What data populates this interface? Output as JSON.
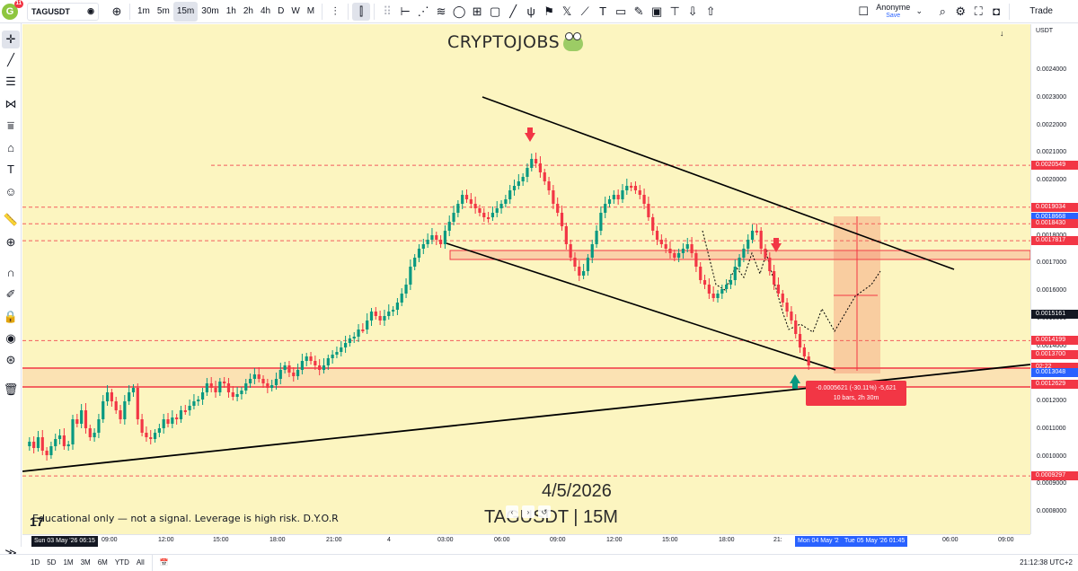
{
  "topbar": {
    "logo_badge": "11",
    "symbol": "TAGUSDT",
    "intervals": [
      "1m",
      "5m",
      "15m",
      "30m",
      "1h",
      "2h",
      "4h",
      "D",
      "W",
      "M"
    ],
    "active_interval": "15m",
    "user_name": "Anonyme",
    "save_label": "Save",
    "trade_label": "Trade"
  },
  "chart": {
    "title": "CRYPTOJOBS",
    "watermark_date": "4/5/2026",
    "watermark_symbol": "TAGUSDT | 15M",
    "disclaimer": "Educational only — not a signal. Leverage is high risk. D.Y.O.R",
    "measure_line1": "-0.0005621 (-30.11%) -5,621",
    "measure_line2": "10 bars, 2h 30m"
  },
  "price_axis": {
    "currency": "USDT",
    "ticks": [
      "0.0024000",
      "0.0023000",
      "0.0022000",
      "0.0021000",
      "0.0020000",
      "0.0019000",
      "0.0018000",
      "0.0017000",
      "0.0016000",
      "0.0015000",
      "0.0014000",
      "0.0013000",
      "0.0012000",
      "0.0011000",
      "0.0010000",
      "0.0009000",
      "0.0008000"
    ],
    "labels": [
      {
        "text": "0.0020549",
        "color": "#f23645"
      },
      {
        "text": "0.0019034",
        "color": "#f23645"
      },
      {
        "text": "0.0018668",
        "color": "#2962ff"
      },
      {
        "text": "0.0018430",
        "color": "#f23645"
      },
      {
        "text": "0.0017817",
        "color": "#f23645"
      },
      {
        "text": "0.0015161",
        "color": "#131722"
      },
      {
        "text": "0.0014199",
        "color": "#f23645"
      },
      {
        "text": "0.0013700",
        "color": "#f23645"
      },
      {
        "text": "02:22",
        "color": "#f23645"
      },
      {
        "text": "0.0013048",
        "color": "#2962ff"
      },
      {
        "text": "0.0012629",
        "color": "#f23645"
      },
      {
        "text": "0.0009297",
        "color": "#f23645"
      }
    ]
  },
  "time_axis": {
    "ticks": [
      "09:00",
      "12:00",
      "15:00",
      "18:00",
      "21:00",
      "4",
      "03:00",
      "06:00",
      "09:00",
      "12:00",
      "15:00",
      "18:00",
      "21:",
      "06:00",
      "09:00"
    ],
    "start_label": "Sun 03 May '26  06:15",
    "range_start": "Mon 04 May '2",
    "range_end": "Tue 05 May '26  01:45"
  },
  "bottombar": {
    "ranges": [
      "1D",
      "5D",
      "1M",
      "3M",
      "6M",
      "YTD",
      "All"
    ],
    "clock": "21:12:38 UTC+2"
  }
}
